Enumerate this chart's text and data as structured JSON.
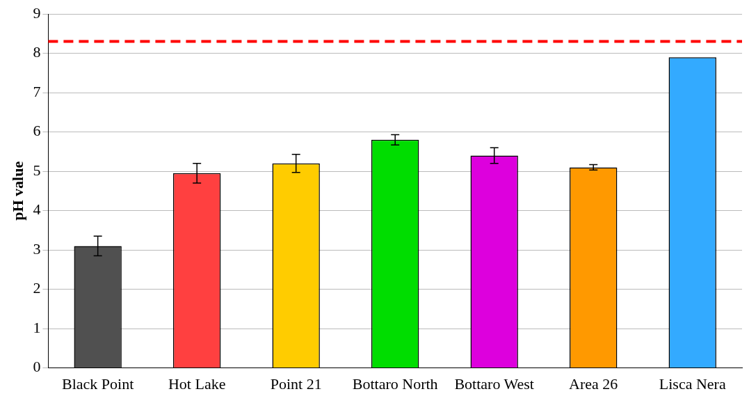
{
  "chart_data": {
    "type": "bar",
    "ylabel": "pH value",
    "categories": [
      "Black Point",
      "Hot Lake",
      "Point 21",
      "Bottaro North",
      "Bottaro West",
      "Area 26",
      "Lisca Nera"
    ],
    "values": [
      3.1,
      4.95,
      5.2,
      5.8,
      5.4,
      5.1,
      7.9
    ],
    "errors": [
      0.25,
      0.25,
      0.23,
      0.13,
      0.2,
      0.07,
      null
    ],
    "colors": [
      "#505050",
      "#ff4040",
      "#ffcc00",
      "#00dd00",
      "#dd00dd",
      "#ff9900",
      "#33aaff"
    ],
    "ylim": [
      0,
      9
    ],
    "yticks": [
      0,
      1,
      2,
      3,
      4,
      5,
      6,
      7,
      8,
      9
    ],
    "grid": "y",
    "legend": false,
    "ref_lines": [
      {
        "axis": "y",
        "value": 8.3,
        "color": "#ff0000",
        "line_style": "dashed"
      }
    ]
  }
}
